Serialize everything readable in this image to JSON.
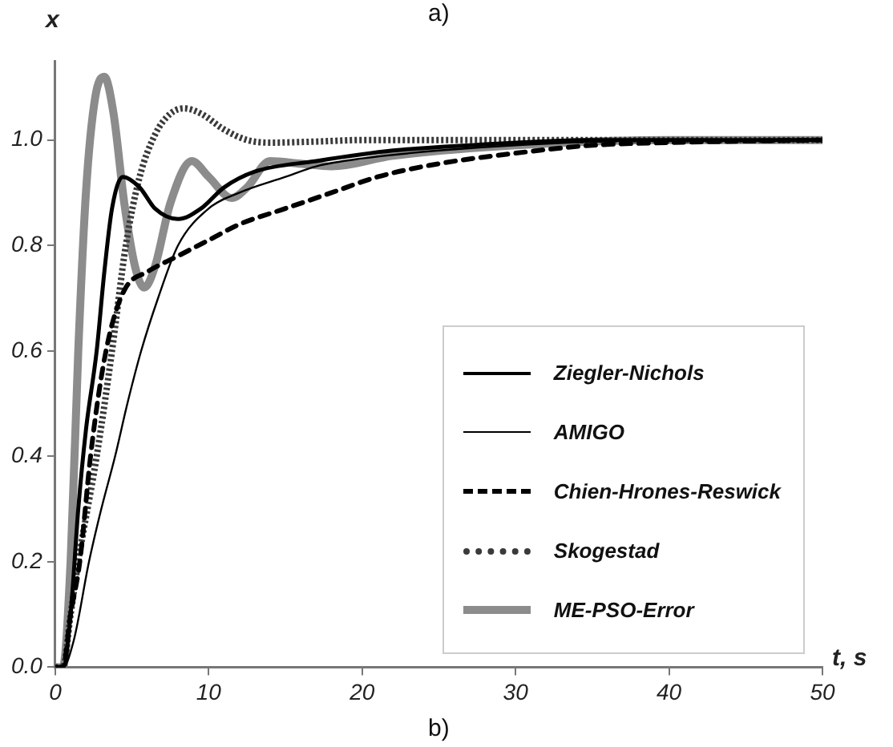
{
  "chart_data": {
    "type": "line",
    "xlabel": "t, s",
    "ylabel": "x",
    "annotations": [
      "a)",
      "b)"
    ],
    "xlim": [
      0,
      50
    ],
    "xticks": [
      0,
      10,
      20,
      30,
      40,
      50
    ],
    "ylim": [
      0,
      1.15
    ],
    "yticks": [
      {
        "value": 0,
        "label": "0.0"
      },
      {
        "value": 0.2,
        "label": "0.2"
      },
      {
        "value": 0.4,
        "label": "0.4"
      },
      {
        "value": 0.6,
        "label": "0.6"
      },
      {
        "value": 0.8,
        "label": "0.8"
      },
      {
        "value": 1,
        "label": "1.0"
      }
    ],
    "legend": "bottom right",
    "marker": "none",
    "series": [
      {
        "name": "Ziegler-Nichols",
        "color": "#000000",
        "line_style": "solid",
        "x": [
          0,
          0.5,
          1,
          1.5,
          2,
          2.7,
          3.2,
          3.7,
          4.4,
          5.5,
          6.5,
          8,
          9.5,
          11,
          13,
          17,
          22,
          27,
          35,
          50
        ],
        "values": [
          0,
          0,
          0.1,
          0.3,
          0.45,
          0.6,
          0.75,
          0.87,
          0.93,
          0.91,
          0.87,
          0.85,
          0.87,
          0.91,
          0.94,
          0.96,
          0.98,
          0.99,
          1.0,
          1.0
        ]
      },
      {
        "name": "AMIGO",
        "color": "#000000",
        "line_style": "solid",
        "x": [
          0,
          0.5,
          1.2,
          2.2,
          3,
          3.9,
          4.7,
          5.6,
          6.7,
          8,
          10,
          12,
          15,
          17,
          20,
          25,
          30,
          40,
          50
        ],
        "values": [
          0,
          0,
          0.05,
          0.2,
          0.3,
          0.4,
          0.5,
          0.6,
          0.7,
          0.8,
          0.87,
          0.9,
          0.93,
          0.95,
          0.965,
          0.98,
          0.99,
          1.0,
          1.0
        ]
      },
      {
        "name": "Chien-Hrones-Reswick",
        "color": "#000000",
        "line_style": "dashed",
        "x": [
          0,
          0.5,
          1,
          1.6,
          2.3,
          3,
          3.7,
          4.6,
          6,
          8,
          10,
          12,
          15,
          18,
          21,
          25,
          30,
          35,
          40,
          50
        ],
        "values": [
          0,
          0,
          0.1,
          0.2,
          0.4,
          0.55,
          0.65,
          0.72,
          0.75,
          0.78,
          0.81,
          0.84,
          0.87,
          0.9,
          0.93,
          0.955,
          0.975,
          0.99,
          0.995,
          1.0
        ]
      },
      {
        "name": "Skogestad",
        "color": "#3a3a3a",
        "line_style": "dotted",
        "x": [
          0,
          0.5,
          1,
          1.5,
          2.7,
          3.7,
          4.6,
          5.5,
          6.5,
          7.5,
          8.4,
          9.5,
          11,
          12.5,
          14,
          17,
          20,
          50
        ],
        "values": [
          0,
          0,
          0.1,
          0.2,
          0.4,
          0.6,
          0.8,
          0.93,
          1.01,
          1.05,
          1.06,
          1.05,
          1.02,
          1.0,
          0.995,
          0.997,
          1.0,
          1.0
        ]
      },
      {
        "name": "ME-PSO-Error",
        "color": "#8c8c8c",
        "line_style": "solid",
        "x": [
          0,
          0.5,
          1,
          1.5,
          2,
          2.6,
          3.2,
          3.8,
          4.5,
          5.2,
          5.8,
          6.5,
          7.5,
          8.9,
          10,
          11.5,
          12.5,
          14,
          16,
          18,
          22,
          30,
          40,
          50
        ],
        "values": [
          0,
          0,
          0.2,
          0.6,
          0.9,
          1.08,
          1.12,
          1.05,
          0.88,
          0.76,
          0.72,
          0.76,
          0.88,
          0.96,
          0.93,
          0.89,
          0.91,
          0.96,
          0.955,
          0.95,
          0.97,
          0.99,
          1.0,
          1.0
        ]
      }
    ]
  }
}
